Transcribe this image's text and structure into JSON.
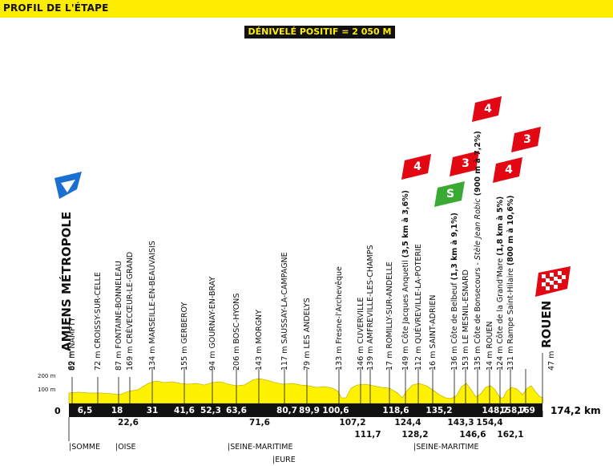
{
  "header": {
    "title": "PROFIL DE L'ÉTAPE",
    "denivele": "DÉNIVELÉ POSITIF = 2 050 M"
  },
  "colors": {
    "banner": "#ffed00",
    "profile_fill": "#fff200",
    "bar": "#111111",
    "climb": "#e30613",
    "sprint": "#3aaa35",
    "start": "#1a6fd1"
  },
  "axis": {
    "label_200": "200 m",
    "label_100": "100 m",
    "zero": "0",
    "total": "174,2 km"
  },
  "start": {
    "name": "AMIENS MÉTROPOLE",
    "alt": "69 m",
    "icon": "start-flag-icon"
  },
  "finish": {
    "name": "ROUEN",
    "alt": "47 m",
    "icon": "checkered-flag-icon"
  },
  "waypoints": [
    {
      "alt": "82 m",
      "name": "NAMPTY"
    },
    {
      "alt": "72 m",
      "name": "CROISSY-SUR-CELLE"
    },
    {
      "alt": "87 m",
      "name": "FONTAINE-BONNELEAU"
    },
    {
      "alt": "169 m",
      "name": "CRÈVECŒUR-LE-GRAND"
    },
    {
      "alt": "134 m",
      "name": "MARSEILLE-EN-BEAUVAISIS"
    },
    {
      "alt": "155 m",
      "name": "GERBEROY"
    },
    {
      "alt": "94 m",
      "name": "GOURNAY-EN-BRAY"
    },
    {
      "alt": "206 m",
      "name": "BOSC-HYONS"
    },
    {
      "alt": "143 m",
      "name": "MORGNY"
    },
    {
      "alt": "117 m",
      "name": "SAUSSAY-LA-CAMPAGNE"
    },
    {
      "alt": "79 m",
      "name": "LES ANDELYS"
    },
    {
      "alt": "133 m",
      "name": "Fresne-l'Archevêque"
    },
    {
      "alt": "146 m",
      "name": "CUVERVILLE"
    },
    {
      "alt": "139 m",
      "name": "AMFREVILLE-LES-CHAMPS"
    },
    {
      "alt": "17 m",
      "name": "ROMILLY-SUR-ANDELLE"
    },
    {
      "alt": "149 m",
      "name": "Côte Jacques Anquetil",
      "detail": "(3,5 km à 3,6%)"
    },
    {
      "alt": "112 m",
      "name": "QUÉVREVILLE-LA-POTERIE"
    },
    {
      "alt": "16 m",
      "name": "SAINT-ADRIEN"
    },
    {
      "alt": "136 m",
      "name": "Côte de Belbeuf",
      "detail": "(1,3 km à 9,1%)"
    },
    {
      "alt": "153 m",
      "name": "LE MESNIL-ESNARD"
    },
    {
      "alt": "135 m",
      "name": "Côte de Bonsecours -",
      "sub": "Stèle Jean Robic",
      "detail": "(900 m à 7,2%)"
    },
    {
      "alt": "14 m",
      "name": "ROUEN"
    },
    {
      "alt": "124 m",
      "name": "Côte de la Grand'Mare",
      "detail": "(1,8 km à 5%)"
    },
    {
      "alt": "131 m",
      "name": "Rampe Saint-Hilaire",
      "detail": "(800 m à 10,6%)"
    }
  ],
  "climbs": [
    {
      "category": "4",
      "name": "jacques-anquetil"
    },
    {
      "category": "3",
      "name": "belbeuf"
    },
    {
      "category": "4",
      "name": "bonsecours"
    },
    {
      "category": "4",
      "name": "grand-mare"
    },
    {
      "category": "3",
      "name": "saint-hilaire"
    }
  ],
  "sprint": {
    "letter": "S"
  },
  "km_markers": [
    {
      "v": "6,5",
      "row": 1
    },
    {
      "v": "18",
      "row": 1
    },
    {
      "v": "22,6",
      "row": 2
    },
    {
      "v": "31",
      "row": 1
    },
    {
      "v": "41,6",
      "row": 1
    },
    {
      "v": "52,3",
      "row": 1
    },
    {
      "v": "63,6",
      "row": 1
    },
    {
      "v": "71,6",
      "row": 2
    },
    {
      "v": "80,7",
      "row": 1
    },
    {
      "v": "89,9",
      "row": 1
    },
    {
      "v": "100,6",
      "row": 1
    },
    {
      "v": "107,2",
      "row": 2
    },
    {
      "v": "111,7",
      "row": 3
    },
    {
      "v": "118,6",
      "row": 1
    },
    {
      "v": "124,4",
      "row": 2
    },
    {
      "v": "128,2",
      "row": 3
    },
    {
      "v": "135,2",
      "row": 1
    },
    {
      "v": "143,3",
      "row": 2
    },
    {
      "v": "146,6",
      "row": 3
    },
    {
      "v": "148,7",
      "row": 1
    },
    {
      "v": "154,4",
      "row": 2
    },
    {
      "v": "158,7",
      "row": 1
    },
    {
      "v": "162,1",
      "row": 3
    },
    {
      "v": "169",
      "row": 1
    }
  ],
  "departments": [
    "|SOMME",
    "|OISE",
    "|SEINE-MARITIME",
    "|EURE",
    "|SEINE-MARITIME"
  ]
}
